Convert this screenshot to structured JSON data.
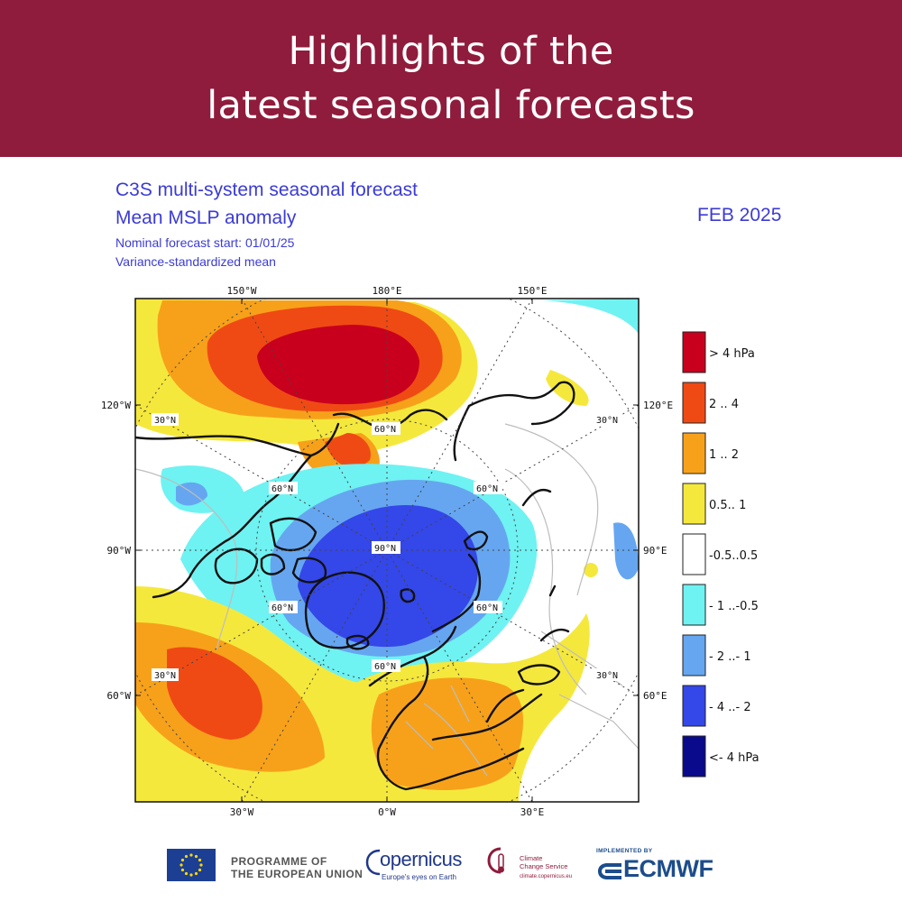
{
  "banner": {
    "line1": "Highlights of the",
    "line2": "latest seasonal forecasts"
  },
  "header": {
    "title": "C3S multi-system seasonal forecast",
    "subtitle": "Mean MSLP anomaly",
    "start": "Nominal forecast start: 01/01/25",
    "method": "Variance-standardized mean",
    "valid_month": "FEB 2025"
  },
  "map": {
    "projection": "polar stereographic, north-pole centred",
    "longitude_labels_top": [
      "150°W",
      "180°E",
      "150°E"
    ],
    "longitude_labels_bottom": [
      "30°W",
      "0°W",
      "30°E"
    ],
    "longitude_labels_left": [
      "120°W",
      "90°W",
      "60°W"
    ],
    "longitude_labels_right": [
      "120°E",
      "90°E",
      "60°E"
    ],
    "latitude_labels": {
      "lat30": "30°N",
      "lat60": "60°N",
      "pole": "90°N"
    }
  },
  "legend": [
    {
      "label": ">  4 hPa",
      "color": "#c8001e"
    },
    {
      "label": "2 .. 4",
      "color": "#f04a14"
    },
    {
      "label": "1 .. 2",
      "color": "#f7a11a"
    },
    {
      "label": "0.5.. 1",
      "color": "#f5e83c"
    },
    {
      "label": "-0.5..0.5",
      "color": "#ffffff"
    },
    {
      "label": "- 1 ..-0.5",
      "color": "#6ff2f2"
    },
    {
      "label": "- 2 ..- 1",
      "color": "#66a6f0"
    },
    {
      "label": "- 4 ..- 2",
      "color": "#3447e8"
    },
    {
      "label": "<- 4 hPa",
      "color": "#0a0a8c"
    }
  ],
  "footer": {
    "eu_line1": "PROGRAMME OF",
    "eu_line2": "THE EUROPEAN UNION",
    "copernicus": "opernicus",
    "copernicus_tagline": "Europe's eyes on Earth",
    "c3s_line1": "Climate",
    "c3s_line2": "Change Service",
    "c3s_url": "climate.copernicus.eu",
    "implemented_by": "IMPLEMENTED BY",
    "ecmwf": "ECMWF"
  }
}
